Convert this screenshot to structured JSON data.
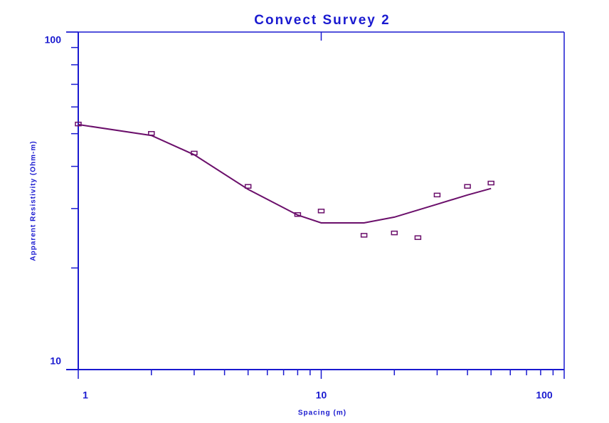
{
  "chart_data": {
    "type": "scatter",
    "title": "Convect Survey 2",
    "x_label": "Spacing (m)",
    "y_label": "Apparent Resistivity (Ohm-m)",
    "log_x": true,
    "log_y": true,
    "xlim": [
      1,
      100
    ],
    "ylim": [
      10,
      100
    ],
    "xticks": [
      1,
      10,
      100
    ],
    "yticks": [
      10,
      100
    ],
    "xminorticks": [
      2,
      3,
      4,
      5,
      6,
      7,
      8,
      9,
      20,
      30,
      40,
      50,
      60,
      70,
      80,
      90
    ],
    "yminorticks": [
      20,
      30,
      40,
      50,
      60,
      70,
      80,
      90
    ],
    "axis_color": "#1a1ad0",
    "points": {
      "color": "#6b0f6b",
      "x": [
        1,
        2,
        3,
        5,
        8,
        10,
        15,
        20,
        25,
        30,
        40,
        50
      ],
      "values": [
        53.4,
        50.1,
        43.8,
        34.9,
        28.8,
        29.5,
        25.0,
        25.4,
        24.6,
        32.9,
        34.9,
        35.7
      ]
    },
    "model": {
      "color": "#6b0f6b",
      "x": [
        1,
        2,
        3,
        5,
        8,
        10,
        15,
        20,
        30,
        40,
        50
      ],
      "values": [
        53.2,
        49.4,
        43.3,
        34.2,
        28.7,
        27.2,
        27.2,
        28.3,
        30.9,
        32.9,
        34.4
      ]
    }
  }
}
